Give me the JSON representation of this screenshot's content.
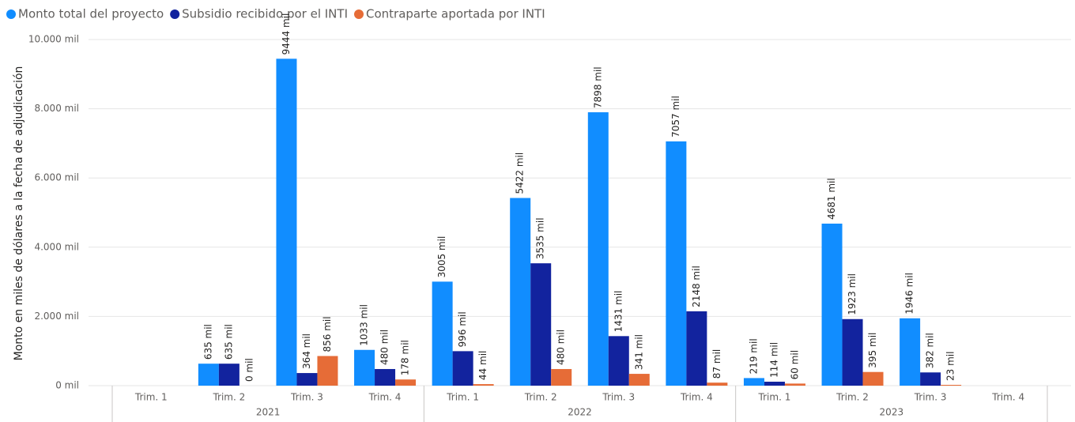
{
  "chart_data": {
    "type": "bar",
    "y_axis_label": "Monto en miles de dólares a la fecha de adjudicación",
    "categories": [
      "Trim. 1",
      "Trim. 2",
      "Trim. 3",
      "Trim. 4",
      "Trim. 1",
      "Trim. 2",
      "Trim. 3",
      "Trim. 4",
      "Trim. 1",
      "Trim. 2",
      "Trim. 3",
      "Trim. 4"
    ],
    "category_groups": [
      "2021",
      "2022",
      "2023"
    ],
    "series": [
      {
        "name": "Monto total del proyecto",
        "color": "#118dff",
        "values": [
          null,
          635,
          9444,
          1033,
          3005,
          5422,
          7898,
          7057,
          219,
          4681,
          1946,
          null
        ],
        "value_labels": [
          null,
          "635 mil",
          "9444 mil",
          "1033 mil",
          "3005 mil",
          "5422 mil",
          "7898 mil",
          "7057 mil",
          "219 mil",
          "4681 mil",
          "1946 mil",
          null
        ]
      },
      {
        "name": "Subsidio recibido por el INTI",
        "color": "#12239e",
        "values": [
          null,
          635,
          364,
          480,
          996,
          3535,
          1431,
          2148,
          114,
          1923,
          382,
          null
        ],
        "value_labels": [
          null,
          "635 mil",
          "364 mil",
          "480 mil",
          "996 mil",
          "3535 mil",
          "1431 mil",
          "2148 mil",
          "114 mil",
          "1923 mil",
          "382 mil",
          null
        ]
      },
      {
        "name": "Contraparte aportada por INTI",
        "color": "#e66c37",
        "values": [
          null,
          0,
          856,
          178,
          44,
          480,
          341,
          87,
          60,
          395,
          23,
          null
        ],
        "value_labels": [
          null,
          "0 mil",
          "856 mil",
          "178 mil",
          "44 mil",
          "480 mil",
          "341 mil",
          "87 mil",
          "60 mil",
          "395 mil",
          "23 mil",
          null
        ]
      }
    ],
    "ylim": [
      0,
      10000
    ],
    "yticks": [
      {
        "value": 0,
        "label": "0 mil"
      },
      {
        "value": 2000,
        "label": "2.000 mil"
      },
      {
        "value": 4000,
        "label": "4.000 mil"
      },
      {
        "value": 6000,
        "label": "6.000 mil"
      },
      {
        "value": 8000,
        "label": "8.000 mil"
      },
      {
        "value": 10000,
        "label": "10.000 mil"
      }
    ],
    "grid": true,
    "legend": "top-left"
  }
}
